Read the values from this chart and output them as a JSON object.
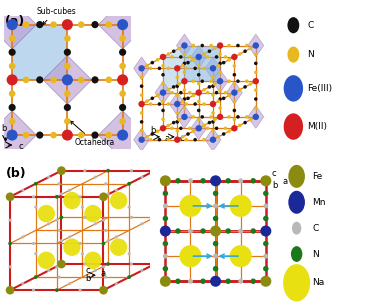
{
  "fig_width": 3.85,
  "fig_height": 3.06,
  "bg_color": "#ffffff",
  "panel_a_label": "(a)",
  "panel_b_label": "(b)",
  "legend_a": {
    "items": [
      "C",
      "N",
      "Fe(III)",
      "M(II)"
    ],
    "colors": [
      "#111111",
      "#e8b820",
      "#2855c8",
      "#d42020"
    ],
    "sizes": [
      0.055,
      0.055,
      0.09,
      0.09
    ]
  },
  "legend_b": {
    "items": [
      "Fe",
      "Mn",
      "C",
      "N",
      "Na"
    ],
    "colors": [
      "#8b8b10",
      "#1a2898",
      "#b8b8b8",
      "#1a7a1a",
      "#e8e010"
    ],
    "sizes": [
      0.08,
      0.08,
      0.045,
      0.055,
      0.13
    ]
  },
  "orange_bond": "#e07818",
  "red_bond": "#cc1a1a",
  "subcube_color": "#88b8e0",
  "octahedra_color": "#b898d0",
  "subcube_alpha": 0.55,
  "octahedra_alpha": 0.6
}
